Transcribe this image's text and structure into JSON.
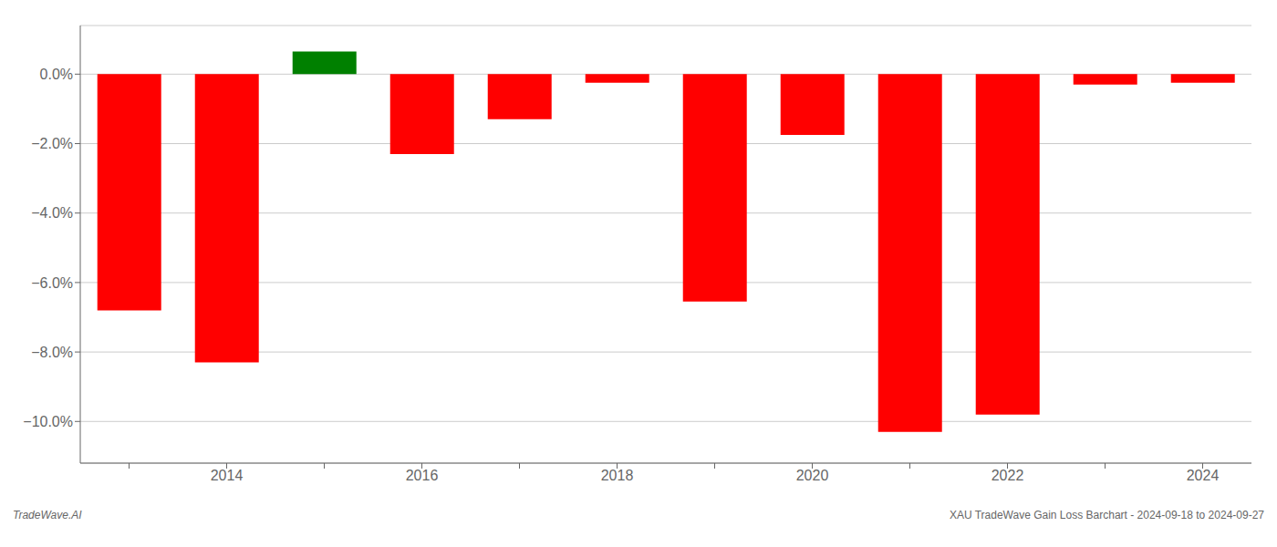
{
  "chart_data": {
    "type": "bar",
    "categories": [
      null,
      "2014",
      null,
      "2016",
      null,
      "2018",
      null,
      "2020",
      null,
      "2022",
      null,
      "2024"
    ],
    "values": [
      -6.8,
      -8.3,
      0.65,
      -2.3,
      -1.3,
      -0.25,
      -6.55,
      -1.75,
      -10.3,
      -9.8,
      -0.3,
      -0.25
    ],
    "colors": [
      "#ff0000",
      "#ff0000",
      "#008000",
      "#ff0000",
      "#ff0000",
      "#ff0000",
      "#ff0000",
      "#ff0000",
      "#ff0000",
      "#ff0000",
      "#ff0000",
      "#ff0000"
    ],
    "ylim": [
      -11.2,
      1.4
    ],
    "yticks": [
      {
        "value": 0.0,
        "label": "0.0%"
      },
      {
        "value": -2.0,
        "label": "−2.0%"
      },
      {
        "value": -4.0,
        "label": "−4.0%"
      },
      {
        "value": -6.0,
        "label": "−6.0%"
      },
      {
        "value": -8.0,
        "label": "−8.0%"
      },
      {
        "value": -10.0,
        "label": "−10.0%"
      }
    ],
    "grid": true,
    "annotations": [
      "TradeWave.AI",
      "XAU TradeWave Gain Loss Barchart - 2024-09-18 to 2024-09-27"
    ]
  }
}
